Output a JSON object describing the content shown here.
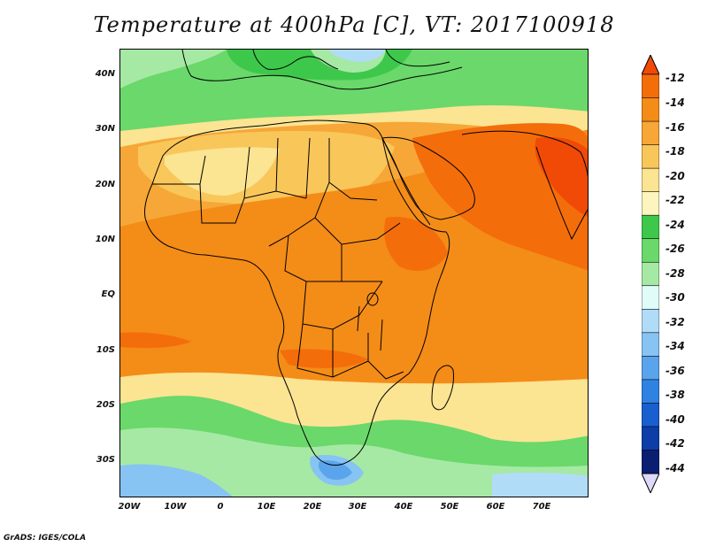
{
  "title": "Temperature at 400hPa [C], VT: 2017100918",
  "credit": "GrADS: IGES/COLA",
  "lat_labels": [
    "40N",
    "30N",
    "20N",
    "10N",
    "EQ",
    "10S",
    "20S",
    "30S"
  ],
  "lon_labels": [
    "20W",
    "10W",
    "0",
    "10E",
    "20E",
    "30E",
    "40E",
    "50E",
    "60E",
    "70E"
  ],
  "colorbar": {
    "labels": [
      "-12",
      "-14",
      "-16",
      "-18",
      "-20",
      "-22",
      "-24",
      "-26",
      "-28",
      "-30",
      "-32",
      "-34",
      "-36",
      "-38",
      "-40",
      "-42",
      "-44"
    ],
    "colors": [
      "#f04a06",
      "#f46d0b",
      "#f48c18",
      "#f6a737",
      "#f9c65a",
      "#fbe492",
      "#fdf5bd",
      "#3ec84b",
      "#6ad86a",
      "#a6e9a4",
      "#e0fcf9",
      "#b1dcf8",
      "#87c3f3",
      "#5aa4ec",
      "#2f82e2",
      "#1a5fcf",
      "#0d3ea8",
      "#0a1f72",
      "#ddd9f6"
    ]
  },
  "colors": {
    "background": "#ffffff",
    "coast": "#000000"
  }
}
